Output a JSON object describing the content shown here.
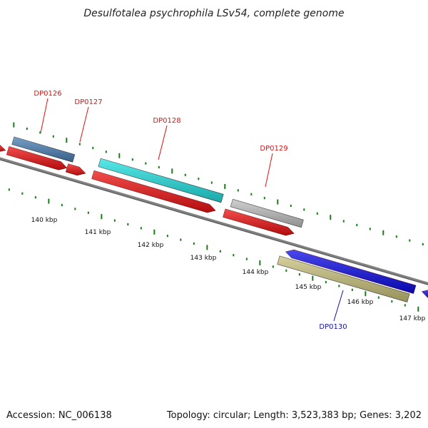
{
  "title": "Desulfotalea psychrophila LSv54, complete genome",
  "footer": {
    "accession": "Accession: NC_006138",
    "summary": "Topology: circular; Length: 3,523,383 bp; Genes: 3,202"
  },
  "colors": {
    "backbone": "#808080",
    "tick": "#1a7a1a",
    "forward_label": "#dd1111",
    "reverse_label": "#1111aa"
  },
  "scale_labels": [
    "140 kbp",
    "141 kbp",
    "142 kbp",
    "143 kbp",
    "144 kbp",
    "145 kbp",
    "146 kbp",
    "147 kbp"
  ],
  "genes": [
    {
      "name": "DP0126",
      "strand": "forward",
      "color": "#4a7fb5"
    },
    {
      "name": "DP0127",
      "strand": "forward",
      "color": "#ee1111"
    },
    {
      "name": "DP0128",
      "strand": "forward",
      "color": "#22e0e0"
    },
    {
      "name": "DP0129",
      "strand": "forward",
      "color": "#c0c0c0"
    },
    {
      "name": "DP0130",
      "strand": "reverse",
      "color": "#c8c07a"
    }
  ]
}
